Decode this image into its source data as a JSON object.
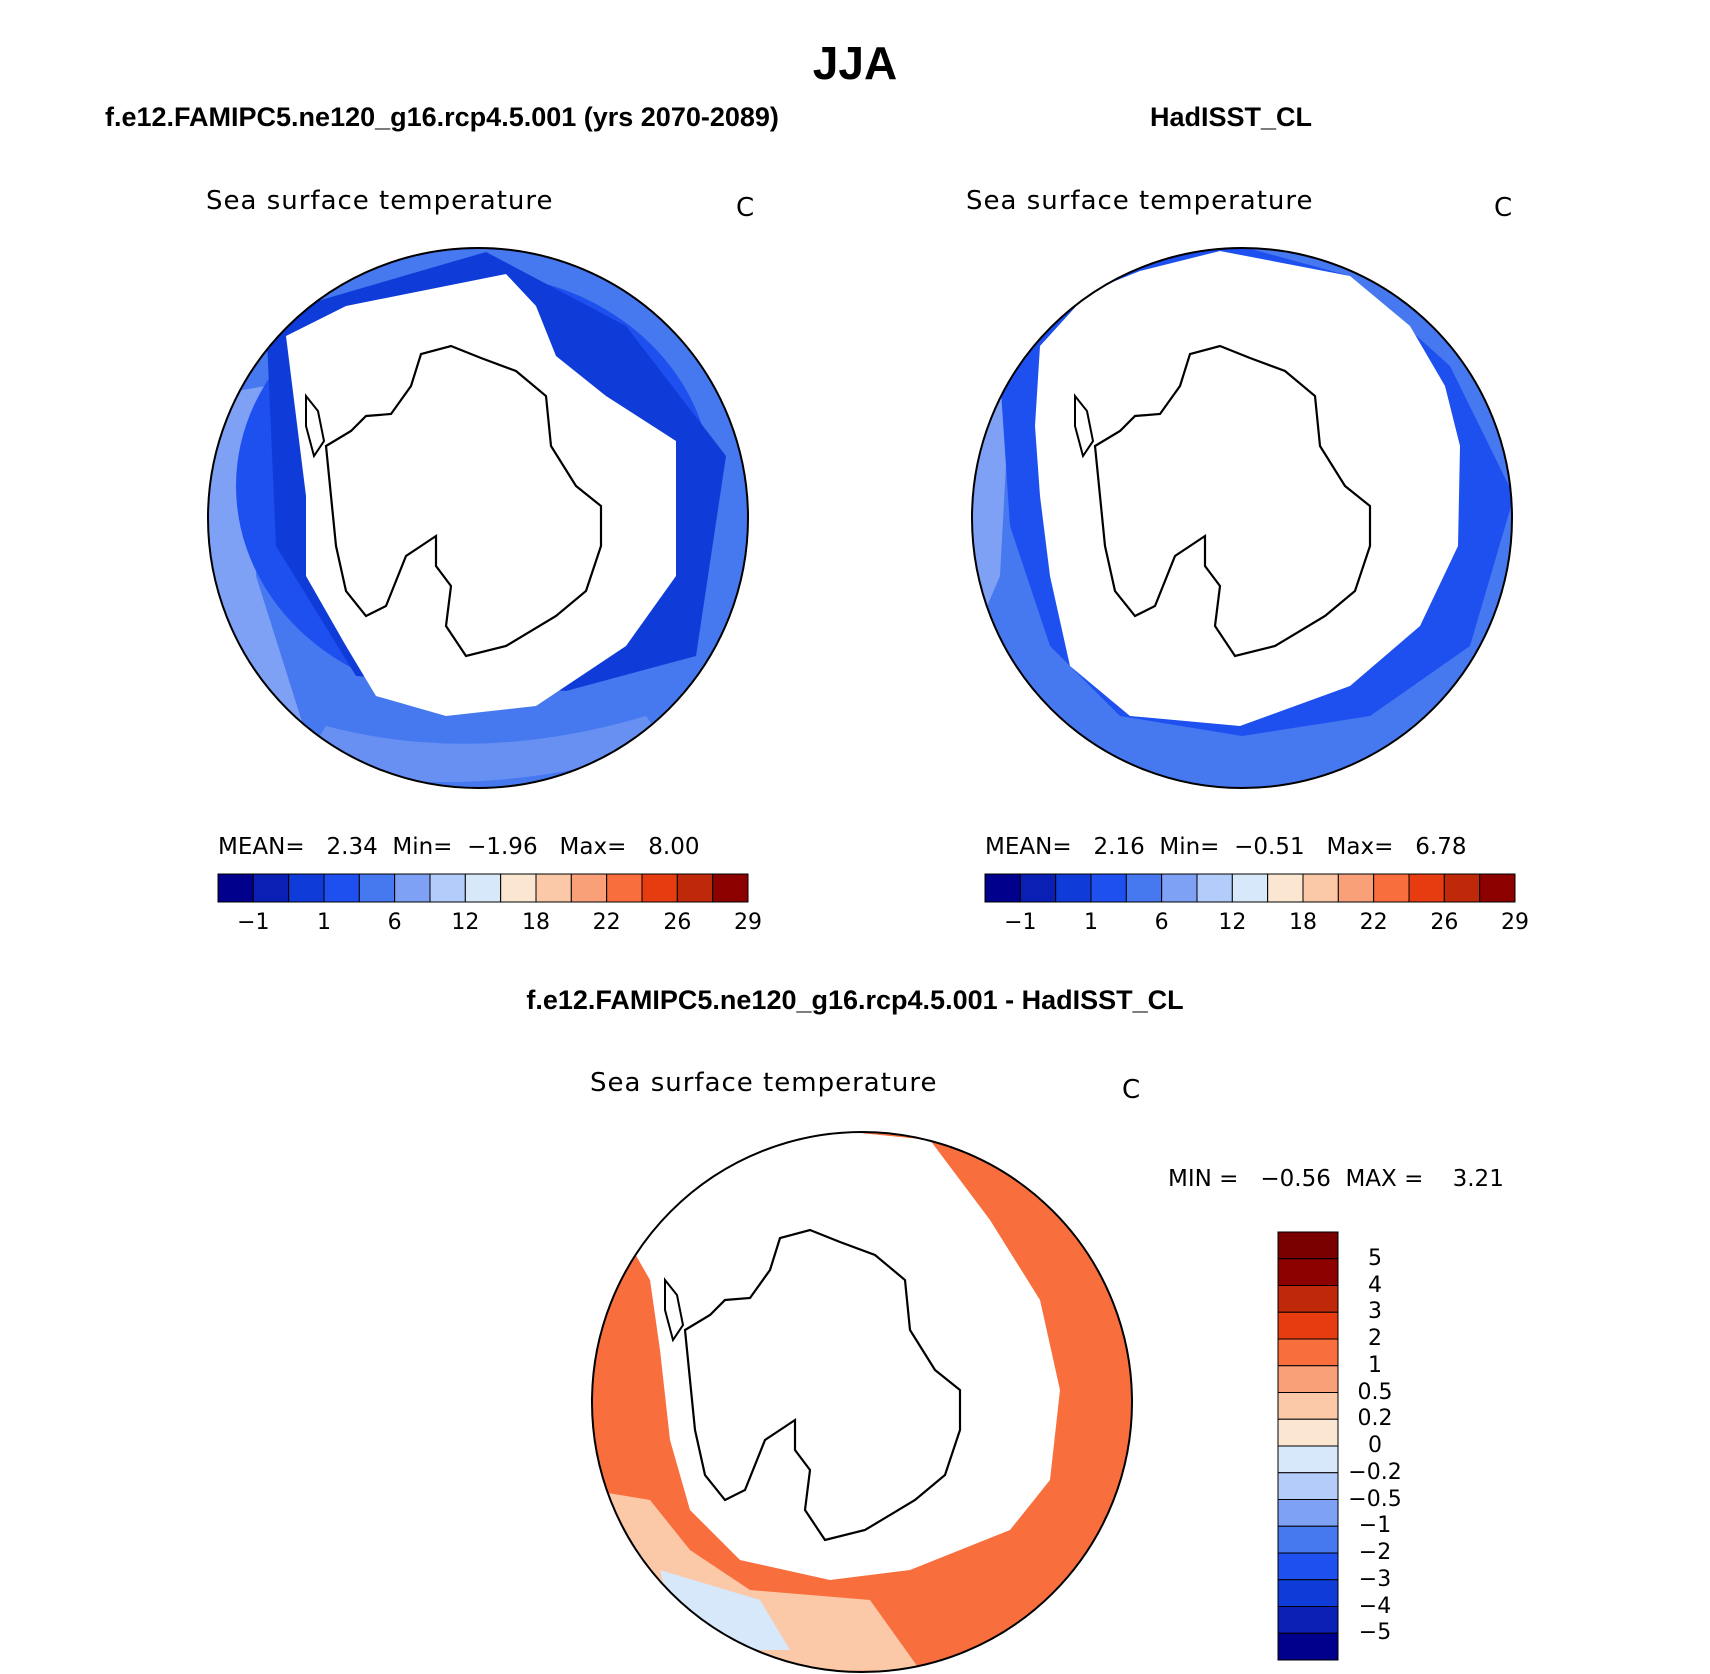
{
  "title": "JJA",
  "panels": [
    {
      "heading": "f.e12.FAMIPC5.ne120_g16.rcp4.5.001 (yrs 2070-2089)",
      "variable": "Sea surface temperature",
      "units": "C",
      "stats": {
        "mean_label": "MEAN=",
        "mean": "2.34",
        "min_label": "Min=",
        "min": "−1.96",
        "max_label": "Max=",
        "max": "8.00"
      }
    },
    {
      "heading": "HadISST_CL",
      "variable": "Sea surface temperature",
      "units": "C",
      "stats": {
        "mean_label": "MEAN=",
        "mean": "2.16",
        "min_label": "Min=",
        "min": "−0.51",
        "max_label": "Max=",
        "max": "6.78"
      }
    }
  ],
  "difference": {
    "heading": "f.e12.FAMIPC5.ne120_g16.rcp4.5.001 - HadISST_CL",
    "variable": "Sea surface temperature",
    "units": "C",
    "minmax": "MIN =   −0.56  MAX =    3.21"
  },
  "colorbars": {
    "absolute": {
      "colors": [
        "#00008c",
        "#0a1fb4",
        "#0f3cd8",
        "#1e50f0",
        "#4678f0",
        "#7ea0f5",
        "#b4ccfa",
        "#d7e8fa",
        "#fbe6d2",
        "#fbc8a8",
        "#f9a078",
        "#f86e3c",
        "#e63c10",
        "#c0280a",
        "#8c0000"
      ],
      "labels": [
        "−1",
        "1",
        "6",
        "12",
        "18",
        "22",
        "26",
        "29"
      ]
    },
    "difference": {
      "colors": [
        "#00008c",
        "#0a1fb4",
        "#0f3cd8",
        "#1e50f0",
        "#4678f0",
        "#7ea0f5",
        "#b4ccfa",
        "#d7e8fa",
        "#fbe6d2",
        "#fbc8a8",
        "#f9a078",
        "#f86e3c",
        "#e63c10",
        "#c0280a",
        "#8c0000",
        "#7a0000"
      ],
      "labels": [
        "5",
        "4",
        "3",
        "2",
        "1",
        "0.5",
        "0.2",
        "0",
        "−0.2",
        "−0.5",
        "−1",
        "−2",
        "−3",
        "−4",
        "−5"
      ]
    }
  },
  "map_colors": {
    "ocean_model_inner": "#0f3cd8",
    "ocean_model_mid": "#1e50f0",
    "ocean_model_outer": "#4678f0",
    "ocean_model_warm": "#7ea0f5",
    "ice": "#ffffff",
    "diff_main": "#f86e3c",
    "diff_light": "#fbc8a8",
    "diff_cool": "#d7e8fa"
  }
}
